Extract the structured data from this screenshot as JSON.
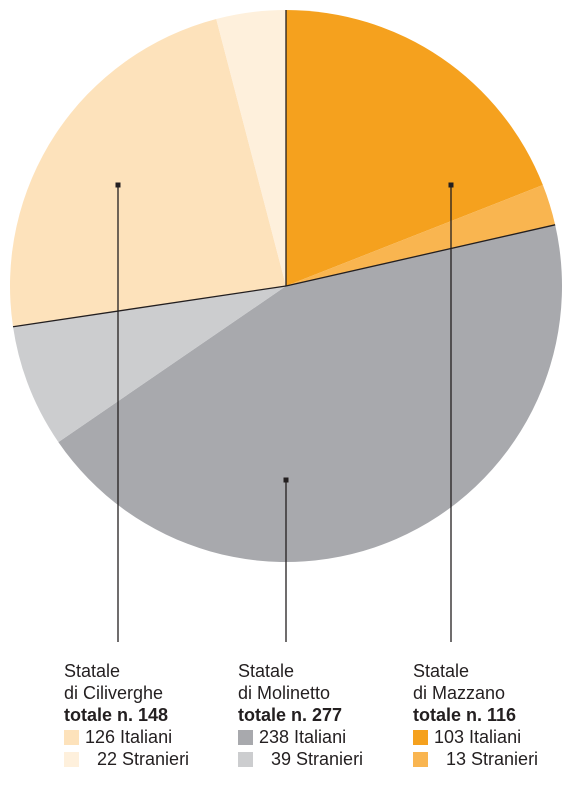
{
  "chart_data": {
    "type": "pie",
    "groups": [
      {
        "key": "mazzano",
        "name_line1": "Statale",
        "name_line2": "di Mazzano",
        "total_label": "totale n. 116",
        "total": 116,
        "slices": [
          {
            "label": "Italiani",
            "value": 103,
            "color": "#f5a11e"
          },
          {
            "label": "Stranieri",
            "value": 13,
            "color": "#f9b550"
          }
        ]
      },
      {
        "key": "molinetto",
        "name_line1": "Statale",
        "name_line2": "di Molinetto",
        "total_label": "totale n. 277",
        "total": 277,
        "slices": [
          {
            "label": "Italiani",
            "value": 238,
            "color": "#a8a9ad"
          },
          {
            "label": "Stranieri",
            "value": 39,
            "color": "#cccdcf"
          }
        ]
      },
      {
        "key": "ciliverghe",
        "name_line1": "Statale",
        "name_line2": "di Ciliverghe",
        "total_label": "totale n. 148",
        "total": 148,
        "slices": [
          {
            "label": "Italiani",
            "value": 126,
            "color": "#fde2bb"
          },
          {
            "label": "Stranieri",
            "value": 22,
            "color": "#fef0dc"
          }
        ]
      }
    ]
  }
}
